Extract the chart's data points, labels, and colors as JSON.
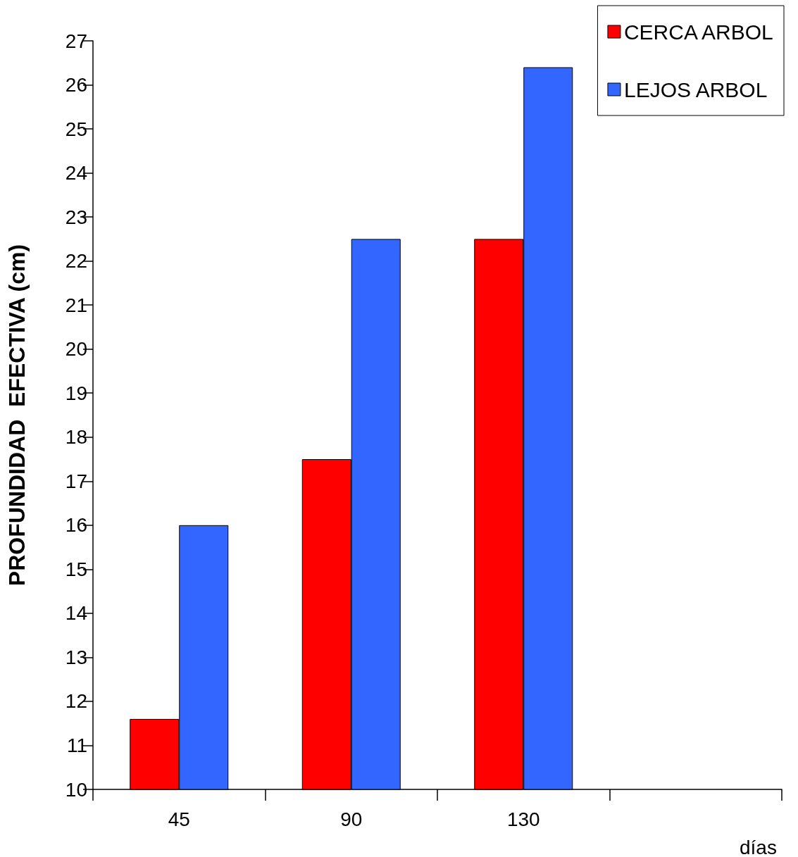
{
  "chart_data": {
    "type": "bar",
    "ylabel": "PROFUNDIDAD  EFECTIVA (cm)",
    "xlabel": "días",
    "categories": [
      "45",
      "90",
      "130",
      null
    ],
    "series": [
      {
        "name": "CERCA ARBOL",
        "color": "#ff0000",
        "values": [
          11.6,
          17.5,
          22.5,
          null
        ]
      },
      {
        "name": "LEJOS ARBOL",
        "color": "#3366ff",
        "values": [
          16,
          22.5,
          26.4,
          null
        ]
      }
    ],
    "ylim": [
      10,
      27
    ],
    "yticks": [
      10,
      11,
      12,
      13,
      14,
      15,
      16,
      17,
      18,
      19,
      20,
      21,
      22,
      23,
      24,
      25,
      26,
      27
    ],
    "grid": false,
    "legend": "top right"
  }
}
